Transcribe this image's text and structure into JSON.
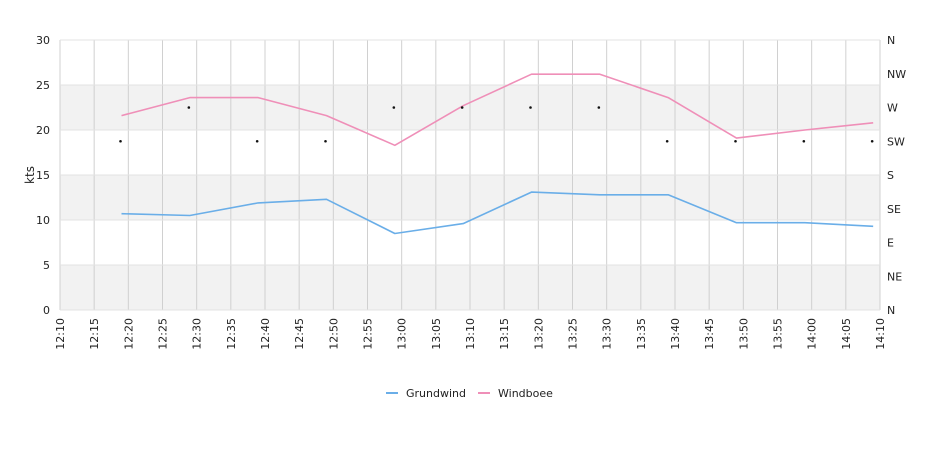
{
  "chart_data": {
    "type": "line",
    "ylabel": "kts",
    "ylim": [
      0,
      30
    ],
    "y_ticks": [
      0,
      5,
      10,
      15,
      20,
      25,
      30
    ],
    "x_ticks": [
      "12:10",
      "12:15",
      "12:20",
      "12:25",
      "12:30",
      "12:35",
      "12:40",
      "12:45",
      "12:50",
      "12:55",
      "13:00",
      "13:05",
      "13:10",
      "13:15",
      "13:20",
      "13:25",
      "13:30",
      "13:35",
      "13:40",
      "13:45",
      "13:50",
      "13:55",
      "14:00",
      "14:05",
      "14:10"
    ],
    "x": [
      "12:19",
      "12:29",
      "12:39",
      "12:49",
      "12:59",
      "13:09",
      "13:19",
      "13:29",
      "13:39",
      "13:49",
      "13:59",
      "14:09"
    ],
    "series": [
      {
        "name": "Grundwind",
        "color": "#6aaee8",
        "values": [
          10.7,
          10.5,
          11.9,
          12.3,
          8.5,
          9.6,
          13.1,
          12.8,
          12.8,
          9.7,
          9.7,
          9.3
        ]
      },
      {
        "name": "Windboee",
        "color": "#ef8fb8",
        "values": [
          21.6,
          23.6,
          23.6,
          21.6,
          18.3,
          22.7,
          26.2,
          26.2,
          23.6,
          19.1,
          20.0,
          20.8
        ]
      }
    ],
    "direction_axis": {
      "labels": [
        "N",
        "NE",
        "E",
        "SE",
        "S",
        "SW",
        "W",
        "NW",
        "N"
      ],
      "x": [
        "12:19",
        "12:29",
        "12:39",
        "12:49",
        "12:59",
        "13:09",
        "13:19",
        "13:29",
        "13:39",
        "13:49",
        "13:59",
        "14:09"
      ],
      "values": [
        "SW",
        "W",
        "SW",
        "SW",
        "W",
        "W",
        "W",
        "W",
        "SW",
        "SW",
        "SW",
        "SW"
      ]
    },
    "band_color": "#f2f2f2",
    "grid_color": "#d0d0d0",
    "legend_position": "bottom-center",
    "grid": true
  }
}
